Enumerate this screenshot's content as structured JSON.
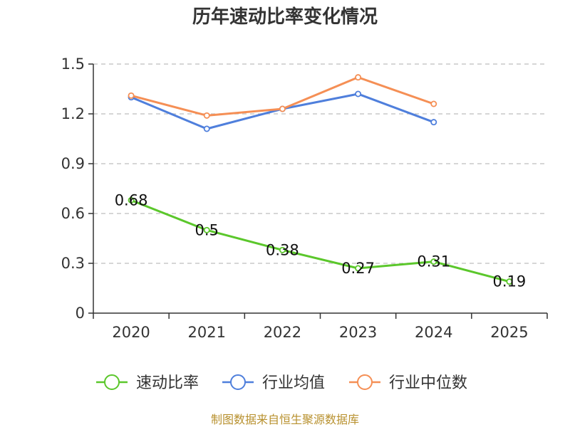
{
  "chart_data": {
    "type": "line",
    "title": "历年速动比率变化情况",
    "categories": [
      "2020",
      "2021",
      "2022",
      "2023",
      "2024",
      "2025"
    ],
    "ylim": [
      0,
      1.5
    ],
    "yticks": [
      0,
      0.3,
      0.6,
      0.9,
      1.2,
      1.5
    ],
    "ytick_labels": [
      "0",
      "0.3",
      "0.6",
      "0.9",
      "1.2",
      "1.5"
    ],
    "grid": true,
    "legend_position": "bottom",
    "series": [
      {
        "name": "速动比率",
        "color": "#5bc72b",
        "values": [
          0.68,
          0.5,
          0.38,
          0.27,
          0.31,
          0.19
        ],
        "labels": [
          "0.68",
          "0.5",
          "0.38",
          "0.27",
          "0.31",
          "0.19"
        ]
      },
      {
        "name": "行业均值",
        "color": "#4f7fdc",
        "values": [
          1.3,
          1.11,
          1.23,
          1.32,
          1.15,
          null
        ]
      },
      {
        "name": "行业中位数",
        "color": "#f58f55",
        "values": [
          1.31,
          1.19,
          1.23,
          1.42,
          1.26,
          null
        ]
      }
    ]
  },
  "source_text": "制图数据来自恒生聚源数据库"
}
